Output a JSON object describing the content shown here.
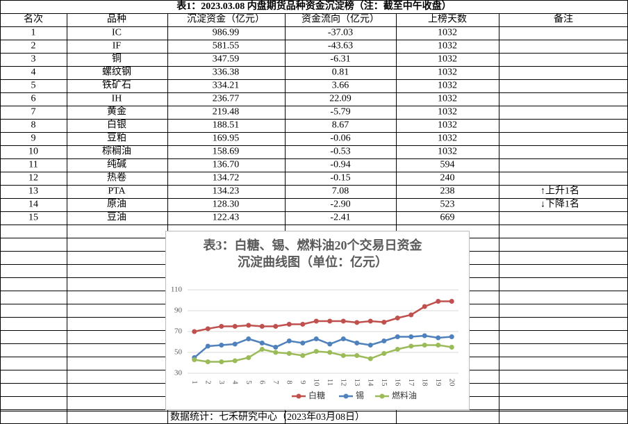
{
  "table": {
    "title": "表1：2023.03.08 内盘期货品种资金沉淀榜（注：截至中午收盘）",
    "headers": [
      "名次",
      "品种",
      "沉淀资金（亿元）",
      "资金流向（亿元）",
      "上榜天数",
      "备注"
    ],
    "rows": [
      [
        "1",
        "IC",
        "986.99",
        "-37.03",
        "1032",
        ""
      ],
      [
        "2",
        "IF",
        "581.55",
        "-43.63",
        "1032",
        ""
      ],
      [
        "3",
        "铜",
        "347.59",
        "-6.31",
        "1032",
        ""
      ],
      [
        "4",
        "螺纹钢",
        "336.38",
        "0.81",
        "1032",
        ""
      ],
      [
        "5",
        "铁矿石",
        "334.21",
        "3.66",
        "1032",
        ""
      ],
      [
        "6",
        "IH",
        "236.77",
        "22.09",
        "1032",
        ""
      ],
      [
        "7",
        "黄金",
        "219.48",
        "-5.79",
        "1032",
        ""
      ],
      [
        "8",
        "白银",
        "188.51",
        "8.67",
        "1032",
        ""
      ],
      [
        "9",
        "豆粕",
        "169.95",
        "-0.06",
        "1032",
        ""
      ],
      [
        "10",
        "棕榈油",
        "158.69",
        "-0.53",
        "1032",
        ""
      ],
      [
        "11",
        "纯碱",
        "136.70",
        "-0.94",
        "594",
        ""
      ],
      [
        "12",
        "热卷",
        "134.72",
        "-0.15",
        "240",
        ""
      ],
      [
        "13",
        "PTA",
        "134.23",
        "7.08",
        "238",
        "↑上升1名"
      ],
      [
        "14",
        "原油",
        "128.30",
        "-2.90",
        "523",
        "↓下降1名"
      ],
      [
        "15",
        "豆油",
        "122.43",
        "-2.41",
        "669",
        ""
      ]
    ],
    "footer": "数据统计：七禾研究中心（2023年03月08日）"
  },
  "chart_data": {
    "type": "line",
    "title": [
      "表3：白糖、锡、燃料油20个交易日资金",
      "沉淀曲线图（单位：亿元）"
    ],
    "categories": [
      "1",
      "2",
      "3",
      "4",
      "5",
      "6",
      "7",
      "8",
      "9",
      "10",
      "11",
      "12",
      "13",
      "14",
      "15",
      "16",
      "17",
      "18",
      "19",
      "20"
    ],
    "series": [
      {
        "name": "白糖",
        "color": "#c0504d",
        "values": [
          70,
          72.7,
          75,
          75,
          76,
          75,
          75,
          77,
          77,
          80,
          80,
          80,
          78.7,
          80,
          79,
          83,
          86,
          94,
          99,
          99
        ]
      },
      {
        "name": "锡",
        "color": "#4f81bd",
        "values": [
          45,
          56,
          57,
          58,
          63,
          59,
          55,
          61,
          59,
          63,
          58,
          63,
          59,
          57,
          61,
          65,
          65,
          66,
          64,
          65
        ]
      },
      {
        "name": "燃料油",
        "color": "#9bbb59",
        "values": [
          43,
          41,
          41,
          42,
          45,
          53,
          50,
          49,
          47,
          51,
          50,
          47,
          47,
          44,
          49,
          53,
          56,
          57,
          57,
          55
        ]
      }
    ],
    "ylim": [
      30,
      110
    ],
    "yticks": [
      30,
      50,
      70,
      90,
      110
    ],
    "grid": true
  }
}
